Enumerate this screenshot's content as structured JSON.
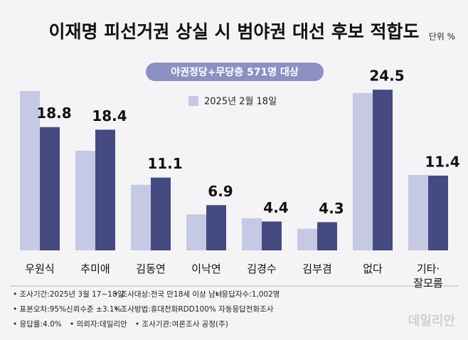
{
  "chart_data": {
    "type": "bar",
    "title": "이재명 피선거권 상실 시 범야권 대선 후보 적합도",
    "unit": "단위 %",
    "subtitle": "야권정당+무당층 571명 대상",
    "categories": [
      "우원식",
      "추미애",
      "김동연",
      "이낙연",
      "김경수",
      "김부겸",
      "없다",
      "기타·\n잘모름"
    ],
    "series": [
      {
        "name": "2025년 2월 18일",
        "color": "#c6c9e4",
        "values": [
          24.3,
          15.2,
          10.0,
          5.5,
          4.9,
          3.3,
          24.0,
          11.5
        ]
      },
      {
        "color": "#454a80",
        "values": [
          18.8,
          18.4,
          11.1,
          6.9,
          4.4,
          4.3,
          24.5,
          11.4
        ]
      }
    ],
    "footnotes": [
      [
        "• 조사기간:2025년 3월 17~18일",
        "• 조사대상:전국 만18세 이상 남녀",
        "• 응답자수:1,002명"
      ],
      [
        "• 표본오차:95%신뢰수준 ±3.1%",
        "• 조사방법:휴대전화RDD100% 자동응답전화조사"
      ],
      [
        "• 응답률:4.0%",
        "• 의뢰자:데일리안",
        "• 조사기관:여론조사 공정(주)"
      ]
    ],
    "watermark": "데일리안"
  }
}
